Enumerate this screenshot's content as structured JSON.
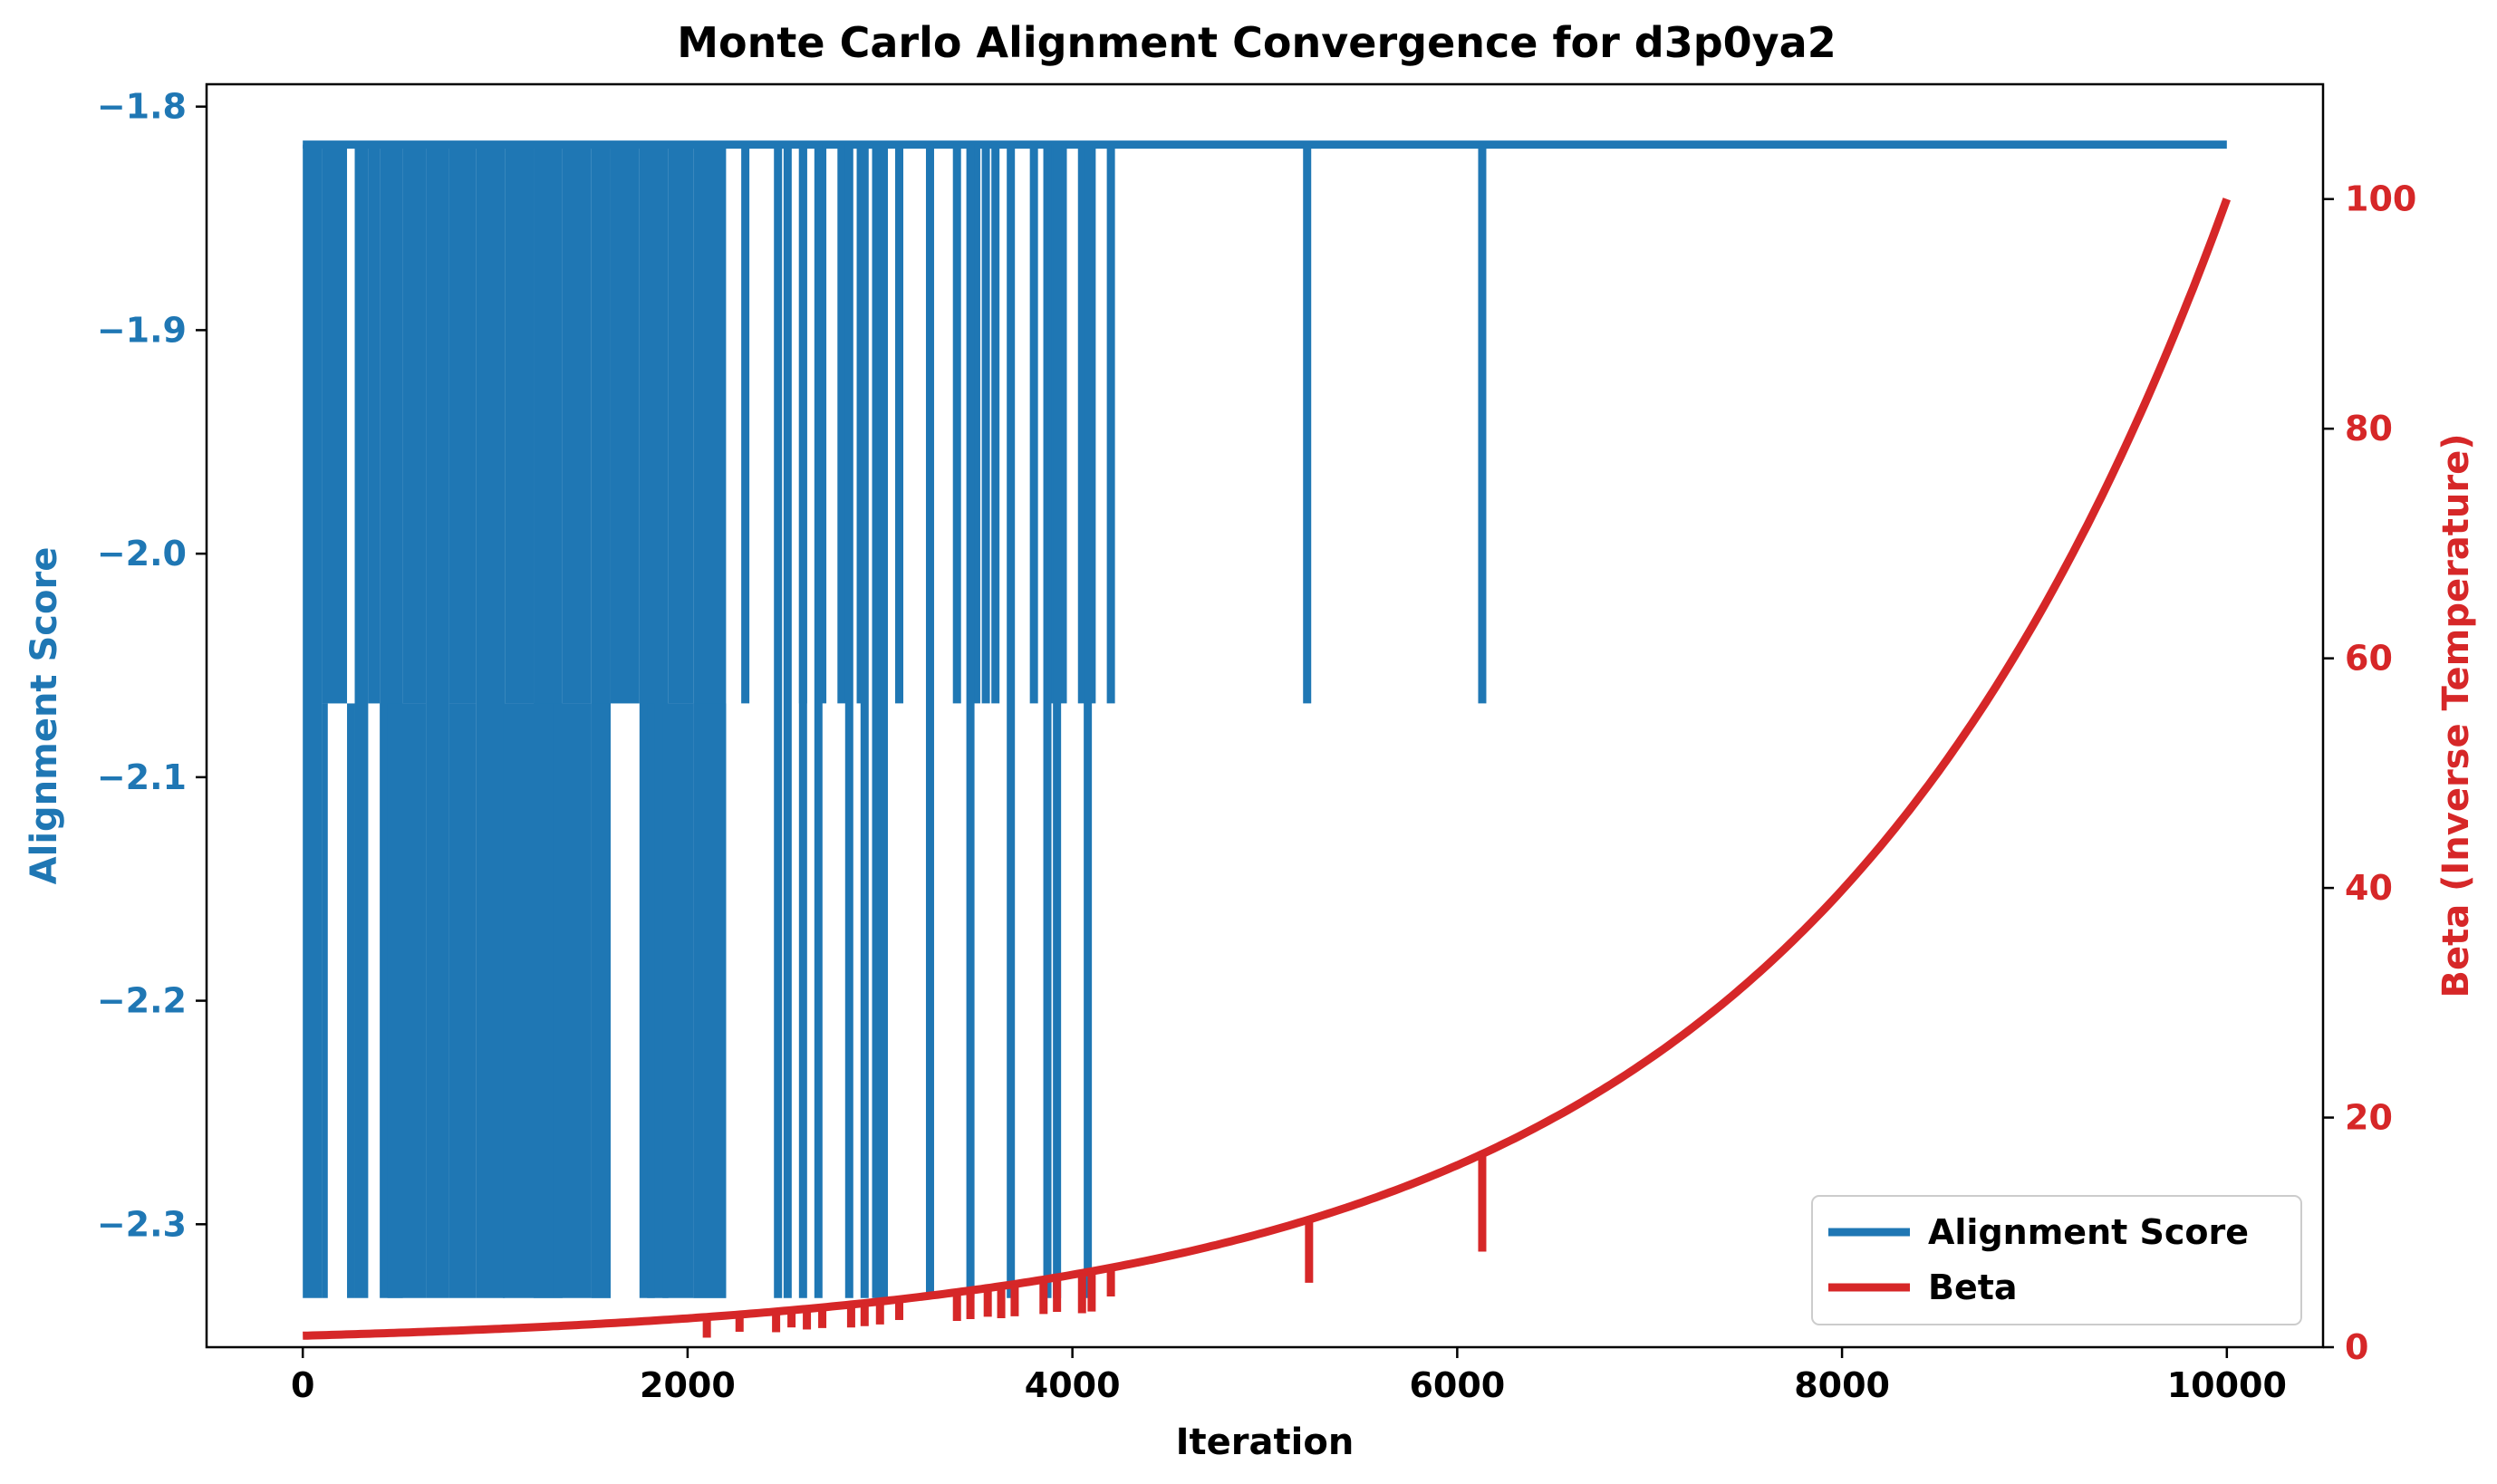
{
  "chart_data": {
    "type": "line",
    "title": "Monte Carlo Alignment Convergence for d3p0ya2",
    "xlabel": "Iteration",
    "ylabel_left": "Alignment Score",
    "ylabel_right": "Beta (Inverse Temperature)",
    "xlim": [
      -500,
      10500
    ],
    "ylim_left": [
      -2.355,
      -1.79
    ],
    "ylim_right": [
      0,
      110
    ],
    "x_ticks": [
      0,
      2000,
      4000,
      6000,
      8000,
      10000
    ],
    "x_tick_labels": [
      "0",
      "2000",
      "4000",
      "6000",
      "8000",
      "10000"
    ],
    "y_left_ticks": [
      -1.8,
      -1.9,
      -2.0,
      -2.1,
      -2.2,
      -2.3
    ],
    "y_left_tick_labels": [
      "−1.8",
      "−1.9",
      "−2.0",
      "−2.1",
      "−2.2",
      "−2.3"
    ],
    "y_right_ticks": [
      0,
      20,
      40,
      60,
      80,
      100
    ],
    "y_right_tick_labels": [
      "0",
      "20",
      "40",
      "60",
      "80",
      "100"
    ],
    "legend_position": "bottom-right",
    "grid": false,
    "score_levels": {
      "high": -1.817,
      "mid": -2.067,
      "low": -2.333
    },
    "score_active_until": 4200,
    "score_end": 10000,
    "score_dense_blocks": [
      [
        0,
        100
      ],
      [
        100,
        230
      ],
      [
        270,
        340
      ],
      [
        340,
        400
      ],
      [
        400,
        520
      ],
      [
        520,
        640
      ],
      [
        640,
        760
      ],
      [
        760,
        900
      ],
      [
        900,
        1050
      ],
      [
        1050,
        1200
      ],
      [
        1200,
        1350
      ],
      [
        1350,
        1500
      ],
      [
        1500,
        1600
      ],
      [
        1600,
        1750
      ],
      [
        1750,
        1900
      ],
      [
        1900,
        2030
      ],
      [
        2030,
        2200
      ]
    ],
    "score_spikes_mid": [
      2300,
      2600,
      2700,
      2800,
      2900,
      3000,
      3100,
      3400,
      3500,
      3550,
      3600,
      3800,
      3880,
      3950,
      4050,
      4100,
      4200,
      5220,
      6130
    ],
    "score_spikes_low": [
      2470,
      2520,
      2600,
      2680,
      2840,
      2920,
      2980,
      3020,
      3260,
      3470,
      3680,
      3870,
      3920,
      4080
    ],
    "beta": {
      "start": 1.0,
      "end": 100.0,
      "x_start": 0,
      "x_end": 10000,
      "scale": "exponential",
      "dips": [
        [
          2100,
          1.8
        ],
        [
          2270,
          1.5
        ],
        [
          2460,
          1.8
        ],
        [
          2540,
          1.5
        ],
        [
          2620,
          1.8
        ],
        [
          2700,
          1.8
        ],
        [
          2850,
          2.0
        ],
        [
          2920,
          2.0
        ],
        [
          3000,
          2.0
        ],
        [
          3100,
          1.8
        ],
        [
          3400,
          2.5
        ],
        [
          3470,
          2.5
        ],
        [
          3560,
          2.5
        ],
        [
          3630,
          2.8
        ],
        [
          3700,
          2.8
        ],
        [
          3850,
          3.0
        ],
        [
          3920,
          3.0
        ],
        [
          4050,
          3.5
        ],
        [
          4100,
          3.5
        ],
        [
          4200,
          2.5
        ],
        [
          5230,
          5.5
        ],
        [
          6130,
          8.5
        ]
      ]
    },
    "series": [
      {
        "name": "Alignment Score",
        "color": "#1f77b4",
        "axis": "left"
      },
      {
        "name": "Beta",
        "color": "#d62728",
        "axis": "right"
      }
    ]
  }
}
